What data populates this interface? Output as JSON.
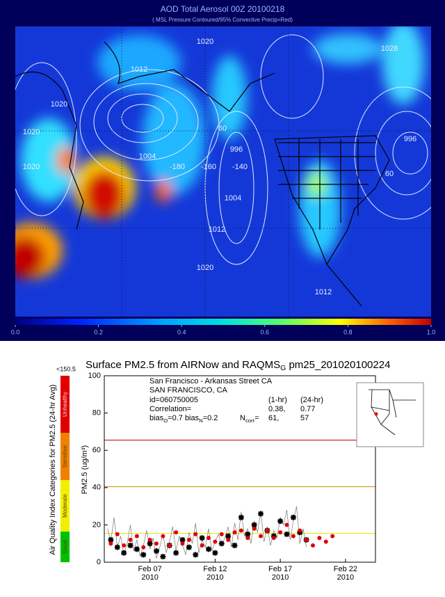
{
  "map": {
    "title": "AOD  Total Aerosol     00Z 20100218",
    "subtitle": "( MSL Pressure Contoured/95% Convective Precip=Red)",
    "contour_labels": [
      "1020",
      "1020",
      "1012",
      "1020",
      "1004",
      "996",
      "1004",
      "1012",
      "1020",
      "1028",
      "1020",
      "996",
      "1012",
      "-180",
      "-160",
      "-140",
      "60",
      "60"
    ],
    "colorbar": {
      "lim": [
        0,
        1
      ],
      "ticks": [
        {
          "value": 0,
          "label": "0.0"
        },
        {
          "value": 0.2,
          "label": "0.2"
        },
        {
          "value": 0.4,
          "label": "0.4"
        },
        {
          "value": 0.6,
          "label": "0.6"
        },
        {
          "value": 0.8,
          "label": "0.8"
        },
        {
          "value": 1,
          "label": "1.0"
        }
      ]
    }
  },
  "aqi": {
    "title": "Air Quality Index Categories for PM2.5 (24-hr Avg)",
    "top_label": "<150.5",
    "categories": [
      {
        "name": "Good",
        "color": "#00c000"
      },
      {
        "name": "Moderate",
        "color": "#f0f000"
      },
      {
        "name": "Sensitive",
        "color": "#f08000"
      },
      {
        "name": "Unhealthy",
        "color": "#e00000"
      }
    ]
  },
  "chart_data": {
    "type": "line",
    "title": [
      "Surface PM2.5 from AIRNow and RAQMS",
      "G",
      " pm25_201020100224"
    ],
    "y_label": "PM2.5 (ug/m³)",
    "info": {
      "site": "San Francisco - Arkansas Street CA",
      "city": "SAN FRANCISCO, CA",
      "id": "id=060750005",
      "col_1hr": "(1-hr)",
      "col_24hr": "(24-hr)",
      "corr_label": "Correlation=",
      "corr_1hr": "0.38,",
      "corr_24hr": "0.77",
      "bias_line": [
        "bias",
        "O",
        "=0.7 bias",
        "N",
        "=0.2"
      ],
      "ncorr_label": [
        "N",
        "corr",
        "="
      ],
      "n_1hr": "61,",
      "n_24hr": "57"
    },
    "xlim": [
      3.5,
      24.3
    ],
    "ylim": [
      0,
      100
    ],
    "yticks": [
      0,
      20,
      40,
      60,
      80,
      100
    ],
    "xticks": [
      {
        "value": 7,
        "label": "Feb 07\n2010"
      },
      {
        "value": 12,
        "label": "Feb 12\n2010"
      },
      {
        "value": 17,
        "label": "Feb 17\n2010"
      },
      {
        "value": 22,
        "label": "Feb 22\n2010"
      }
    ],
    "thresholds": [
      {
        "value": 15.5,
        "color": "#e8e800"
      },
      {
        "value": 40.5,
        "color": "#c89000"
      },
      {
        "value": 65.5,
        "color": "#c00000"
      }
    ],
    "series": [
      {
        "name": "hourly",
        "color": "#777777",
        "style": "line",
        "x": [
          3.75,
          4.0,
          4.25,
          4.5,
          4.75,
          5.0,
          5.25,
          5.5,
          5.75,
          6.0,
          6.25,
          6.5,
          6.75,
          7.0,
          7.25,
          7.5,
          7.75,
          8.0,
          8.25,
          8.5,
          8.75,
          9.0,
          9.25,
          9.5,
          9.75,
          10.0,
          10.25,
          10.5,
          10.75,
          11.0,
          11.25,
          11.5,
          11.75,
          12.0,
          12.25,
          12.5,
          12.75,
          13.0,
          13.25,
          13.5,
          13.75,
          14.0,
          14.25,
          14.5,
          14.75,
          15.0,
          15.25,
          15.5,
          15.75,
          16.0,
          16.25,
          16.5,
          16.75,
          17.0,
          17.25,
          17.5,
          17.75,
          18.0,
          18.25,
          18.5,
          18.75,
          19.0
        ],
        "values": [
          18,
          11,
          24,
          8,
          14,
          4,
          10,
          20,
          6,
          12,
          3,
          9,
          17,
          7,
          13,
          2,
          8,
          15,
          5,
          11,
          19,
          6,
          14,
          9,
          4,
          16,
          10,
          21,
          5,
          12,
          8,
          18,
          6,
          11,
          15,
          9,
          13,
          19,
          8,
          21,
          12,
          27,
          14,
          18,
          10,
          22,
          16,
          27,
          11,
          19,
          9,
          17,
          13,
          24,
          20,
          28,
          12,
          22,
          30,
          10,
          18,
          8
        ]
      },
      {
        "name": "obs",
        "color": "#000000",
        "style": "star",
        "x": [
          4.0,
          4.5,
          5.0,
          5.5,
          6.0,
          6.5,
          7.0,
          7.5,
          8.0,
          8.5,
          9.0,
          9.5,
          10.0,
          10.5,
          11.0,
          11.5,
          12.0,
          12.5,
          13.0,
          13.5,
          14.0,
          14.5,
          15.0,
          15.5,
          16.0,
          16.5,
          17.0,
          17.5,
          18.0,
          18.5,
          19.0
        ],
        "values": [
          12,
          8,
          5,
          9,
          7,
          4,
          10,
          6,
          3,
          9,
          5,
          12,
          8,
          4,
          13,
          7,
          5,
          10,
          14,
          9,
          24,
          15,
          20,
          26,
          17,
          14,
          22,
          15,
          24,
          16,
          12
        ]
      },
      {
        "name": "model",
        "color": "#e00000",
        "style": "dot",
        "x": [
          4.0,
          4.5,
          5.0,
          5.5,
          6.0,
          6.5,
          7.0,
          7.5,
          8.0,
          8.5,
          9.0,
          9.5,
          10.0,
          10.5,
          11.0,
          11.5,
          12.0,
          12.5,
          13.0,
          13.5,
          14.0,
          14.5,
          15.0,
          15.5,
          16.0,
          16.5,
          17.0,
          17.5,
          18.0,
          18.5,
          19.0,
          19.5,
          20.0,
          20.5,
          21.0
        ],
        "values": [
          10,
          15,
          9,
          12,
          14,
          8,
          12,
          10,
          14,
          9,
          16,
          10,
          12,
          15,
          9,
          13,
          11,
          15,
          12,
          16,
          17,
          13,
          18,
          14,
          17,
          13,
          16,
          20,
          14,
          17,
          12,
          9,
          13,
          11,
          14
        ]
      }
    ]
  }
}
